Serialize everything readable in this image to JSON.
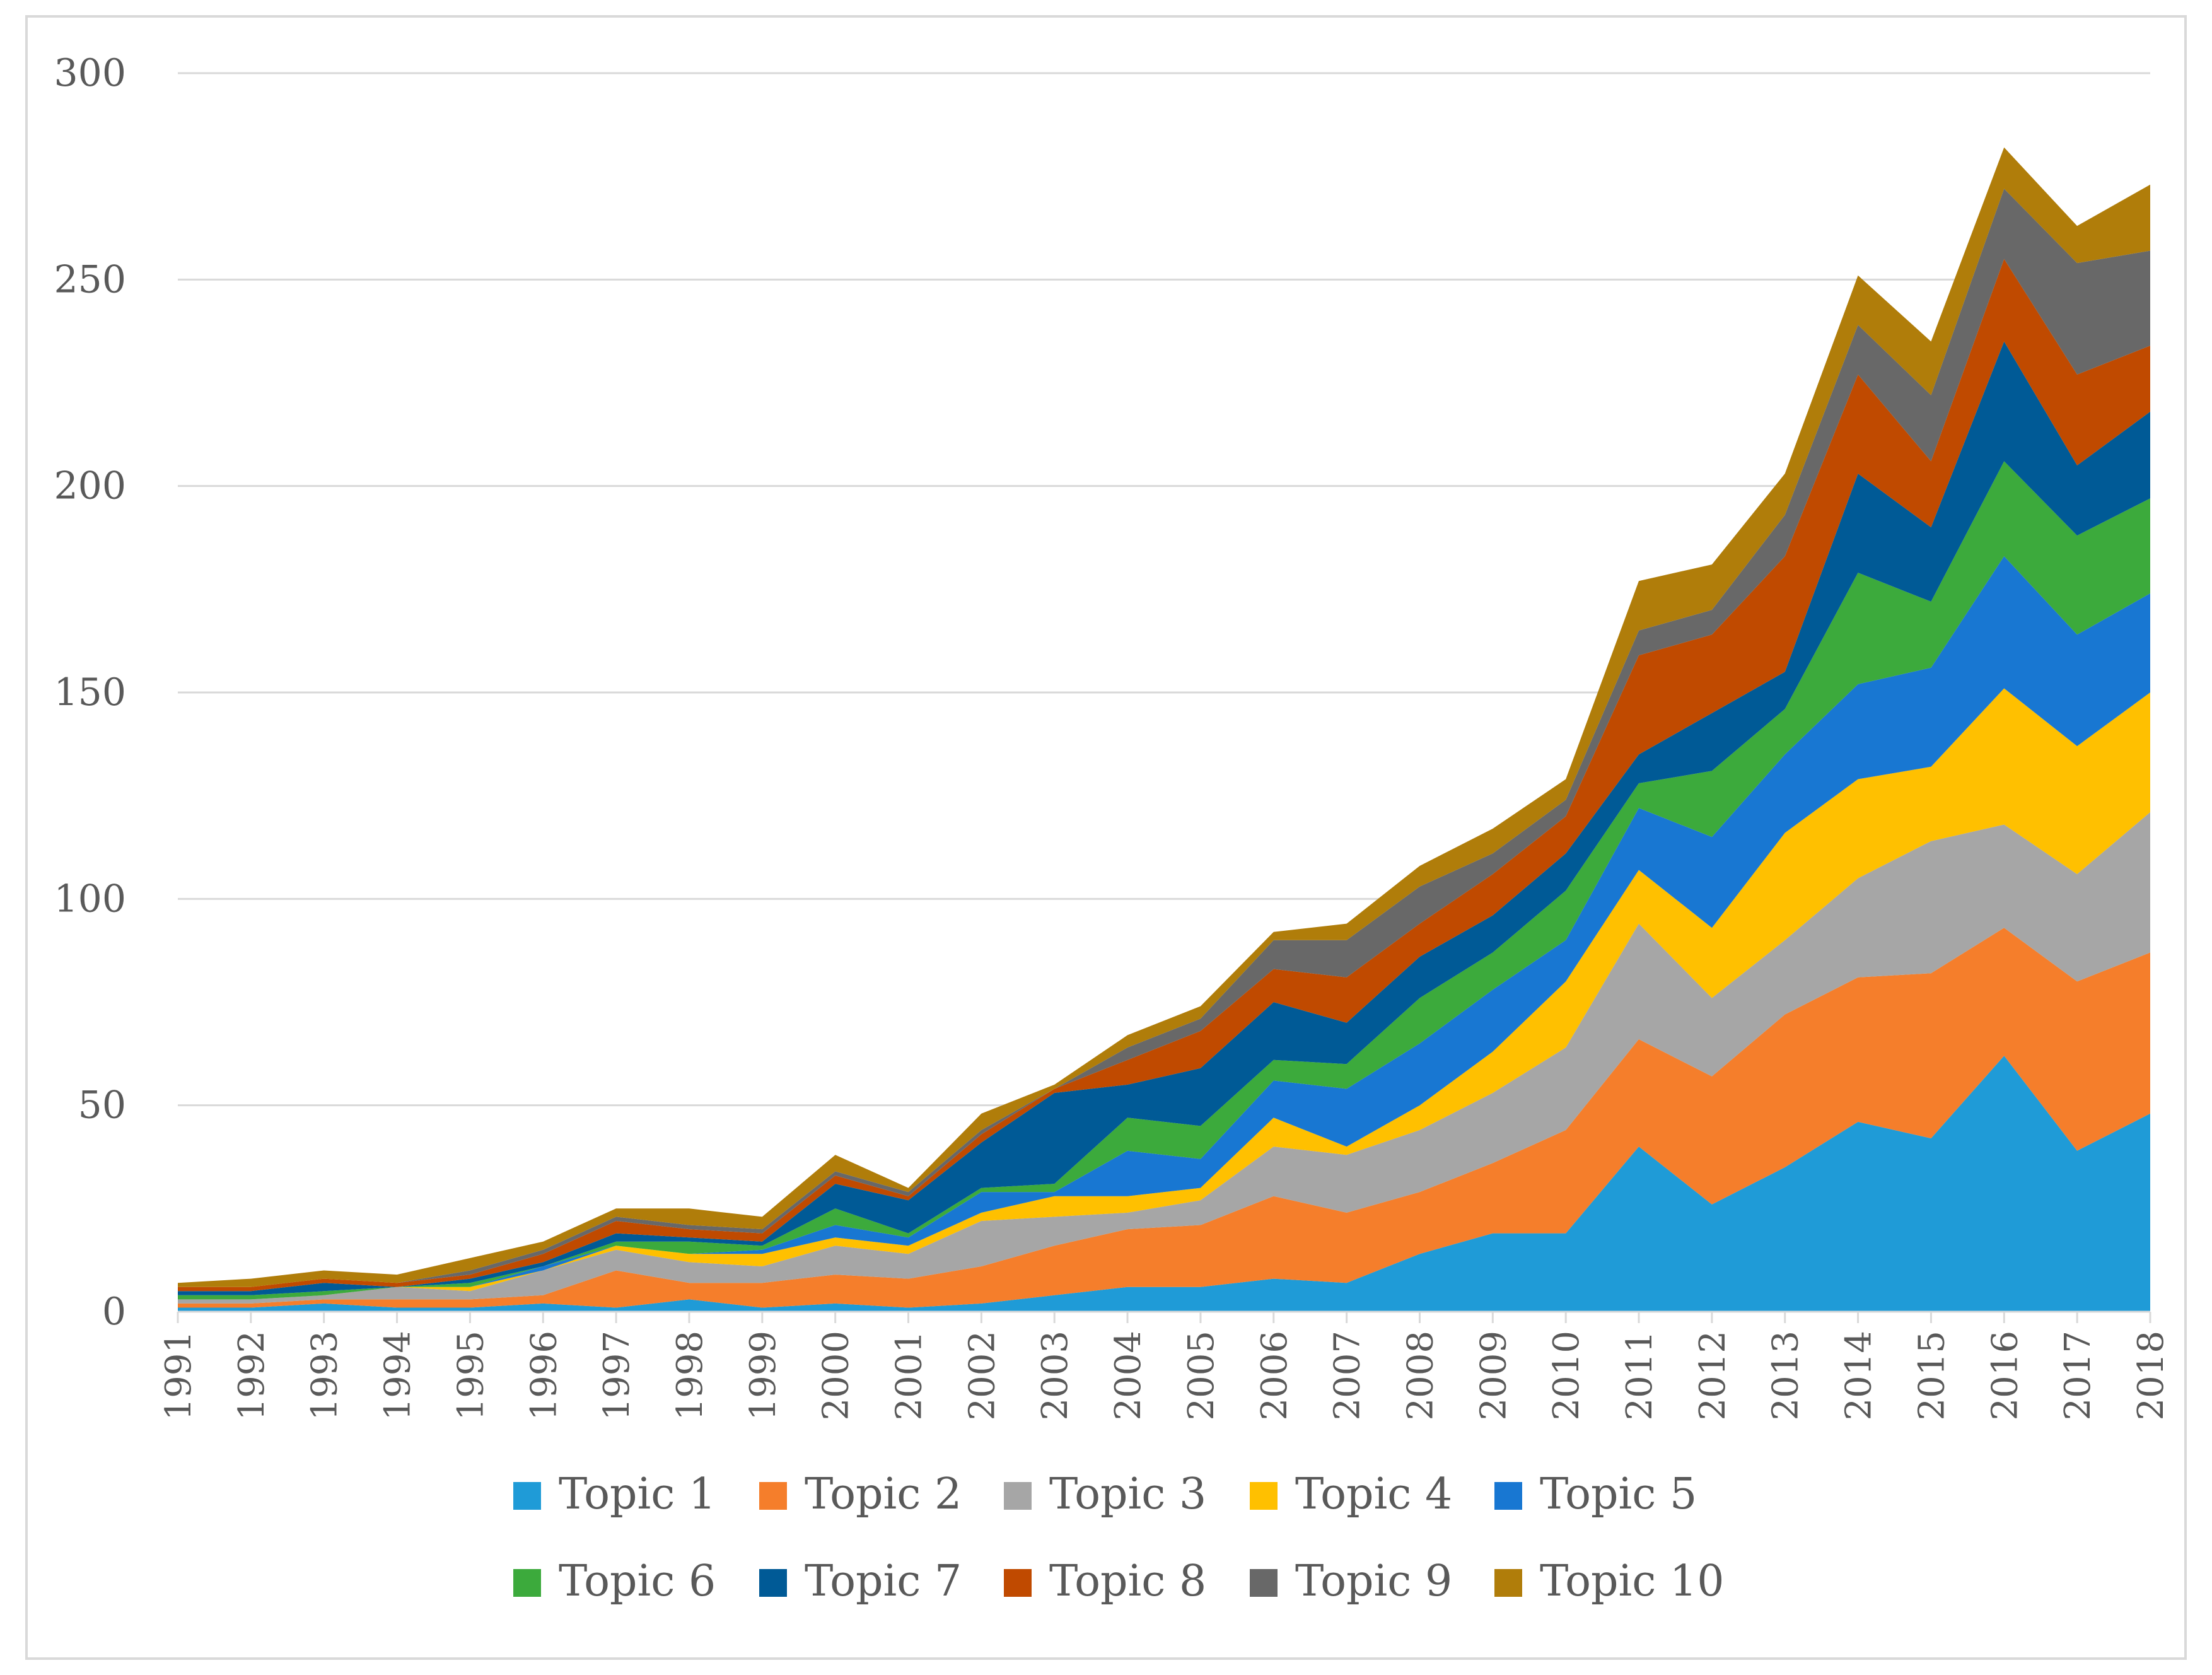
{
  "chart_data": {
    "type": "area",
    "stacked": true,
    "title": "",
    "xlabel": "",
    "ylabel": "",
    "ylim": [
      0,
      300
    ],
    "yticks": [
      0,
      50,
      100,
      150,
      200,
      250,
      300
    ],
    "grid": "horizontal",
    "legend_position": "bottom",
    "x": [
      "1991",
      "1992",
      "1993",
      "1994",
      "1995",
      "1996",
      "1997",
      "1998",
      "1999",
      "2000",
      "2001",
      "2002",
      "2003",
      "2004",
      "2005",
      "2006",
      "2007",
      "2008",
      "2009",
      "2010",
      "2011",
      "2012",
      "2013",
      "2014",
      "2015",
      "2016",
      "2017",
      "2018"
    ],
    "series": [
      {
        "name": "Topic 1",
        "color": "#1f9bd7",
        "values": [
          1,
          1,
          2,
          1,
          1,
          2,
          1,
          3,
          1,
          2,
          1,
          2,
          4,
          6,
          6,
          8,
          7,
          14,
          19,
          19,
          40,
          26,
          35,
          46,
          42,
          62,
          39,
          48
        ]
      },
      {
        "name": "Topic 2",
        "color": "#f57e2b",
        "values": [
          1,
          1,
          1,
          2,
          2,
          2,
          9,
          4,
          6,
          7,
          7,
          9,
          12,
          14,
          15,
          20,
          17,
          15,
          17,
          25,
          26,
          31,
          37,
          35,
          40,
          31,
          41,
          39
        ]
      },
      {
        "name": "Topic 3",
        "color": "#a6a6a6",
        "values": [
          1,
          1,
          1,
          3,
          2,
          6,
          5,
          5,
          4,
          7,
          6,
          11,
          7,
          4,
          6,
          12,
          14,
          15,
          17,
          20,
          28,
          19,
          18,
          24,
          32,
          25,
          26,
          34
        ]
      },
      {
        "name": "Topic 4",
        "color": "#ffc000",
        "values": [
          0,
          0,
          0,
          0,
          1,
          0,
          1,
          2,
          3,
          2,
          2,
          2,
          5,
          4,
          3,
          7,
          2,
          6,
          10,
          16,
          13,
          17,
          26,
          24,
          18,
          33,
          31,
          29
        ]
      },
      {
        "name": "Topic 5",
        "color": "#1877d2",
        "values": [
          0,
          0,
          0,
          0,
          0,
          1,
          0,
          0,
          1,
          3,
          2,
          5,
          1,
          11,
          7,
          9,
          14,
          15,
          15,
          10,
          15,
          22,
          19,
          23,
          24,
          32,
          27,
          24
        ]
      },
      {
        "name": "Topic 6",
        "color": "#3caa3c",
        "values": [
          1,
          1,
          1,
          0,
          1,
          0,
          1,
          3,
          1,
          4,
          1,
          1,
          2,
          8,
          8,
          5,
          6,
          11,
          9,
          12,
          6,
          16,
          11,
          27,
          16,
          23,
          24,
          23
        ]
      },
      {
        "name": "Topic 7",
        "color": "#005a96",
        "values": [
          1,
          1,
          2,
          0,
          1,
          1,
          2,
          1,
          1,
          6,
          8,
          11,
          22,
          8,
          14,
          14,
          10,
          10,
          9,
          9,
          7,
          14,
          9,
          24,
          18,
          29,
          17,
          21
        ]
      },
      {
        "name": "Topic 8",
        "color": "#c04a00",
        "values": [
          1,
          1,
          1,
          1,
          1,
          2,
          3,
          2,
          2,
          2,
          1,
          2,
          1,
          6,
          9,
          8,
          11,
          8,
          10,
          9,
          24,
          19,
          28,
          24,
          16,
          20,
          22,
          16
        ]
      },
      {
        "name": "Topic 9",
        "color": "#686868",
        "values": [
          0,
          0,
          0,
          0,
          1,
          1,
          1,
          1,
          1,
          1,
          1,
          1,
          0,
          3,
          3,
          7,
          9,
          9,
          5,
          4,
          6,
          6,
          10,
          12,
          16,
          17,
          27,
          23
        ]
      },
      {
        "name": "Topic 10",
        "color": "#b07d0a",
        "values": [
          1,
          2,
          2,
          2,
          3,
          2,
          2,
          4,
          3,
          4,
          1,
          4,
          1,
          3,
          3,
          2,
          4,
          5,
          6,
          5,
          12,
          11,
          10,
          12,
          13,
          10,
          9,
          16
        ]
      }
    ]
  }
}
